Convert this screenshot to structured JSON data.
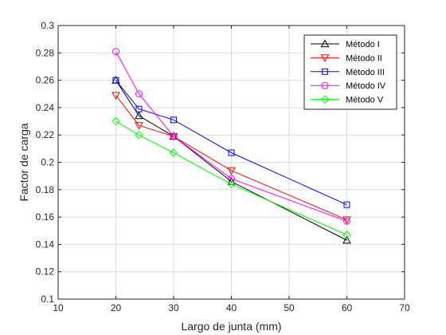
{
  "chart_data": {
    "type": "line",
    "title": "",
    "xlabel": "Largo de junta (mm)",
    "ylabel": "Factor de carga",
    "xlim": [
      10,
      70
    ],
    "ylim": [
      0.1,
      0.3
    ],
    "xticks": [
      "10",
      "20",
      "30",
      "40",
      "50",
      "60",
      "70"
    ],
    "yticks": [
      "0.1",
      "0.12",
      "0.14",
      "0.16",
      "0.18",
      "0.2",
      "0.22",
      "0.24",
      "0.26",
      "0.28",
      "0.3"
    ],
    "grid": true,
    "legend_position": "top-right",
    "x": [
      20,
      24,
      30,
      40,
      60
    ],
    "series": [
      {
        "name": "Método I",
        "color": "#000000",
        "marker": "triangle-up",
        "values": [
          0.26,
          0.234,
          0.219,
          0.186,
          0.143
        ]
      },
      {
        "name": "Método II",
        "color": "#ff0000",
        "marker": "triangle-down",
        "values": [
          0.249,
          0.227,
          0.219,
          0.194,
          0.158
        ]
      },
      {
        "name": "Método III",
        "color": "#0000ff",
        "marker": "square",
        "values": [
          0.26,
          0.239,
          0.231,
          0.207,
          0.169
        ]
      },
      {
        "name": "Método IV",
        "color": "#ff00ff",
        "marker": "circle",
        "values": [
          0.281,
          0.25,
          0.219,
          0.188,
          0.157
        ]
      },
      {
        "name": "Método V",
        "color": "#00ff00",
        "marker": "diamond",
        "values": [
          0.23,
          0.22,
          0.207,
          0.184,
          0.147
        ]
      }
    ]
  }
}
